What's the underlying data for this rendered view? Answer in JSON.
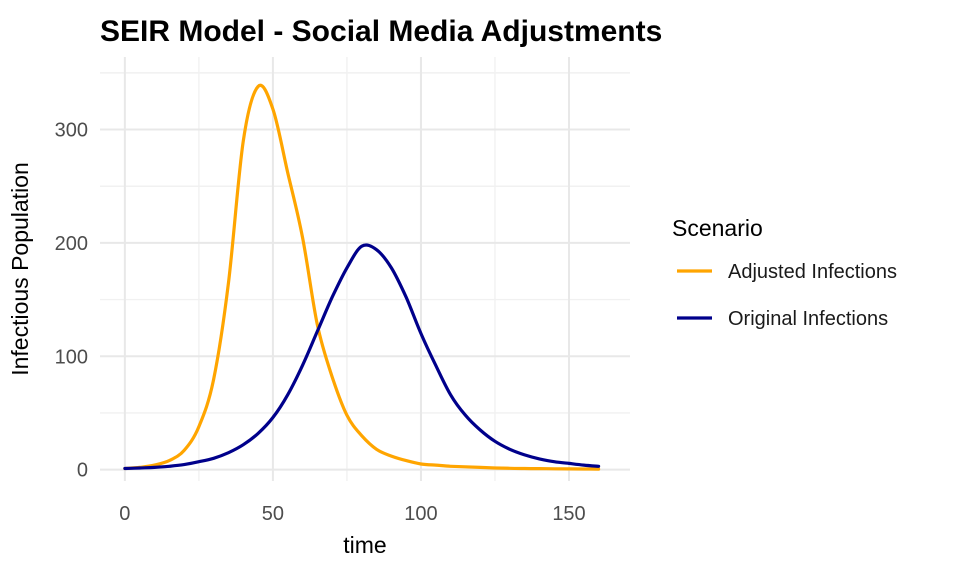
{
  "chart_data": {
    "type": "line",
    "title": "SEIR Model - Social Media Adjustments",
    "xlabel": "time",
    "ylabel": "Infectious Population",
    "xlim": [
      0,
      160
    ],
    "ylim": [
      0,
      340
    ],
    "x_ticks": [
      0,
      50,
      100,
      150
    ],
    "x_minor_ticks": [
      25,
      75,
      125
    ],
    "y_ticks": [
      0,
      100,
      200,
      300
    ],
    "y_minor_ticks": [
      50,
      150,
      250,
      350
    ],
    "grid": true,
    "legend_title": "Scenario",
    "legend_position": "right",
    "x": [
      0,
      5,
      10,
      15,
      20,
      25,
      30,
      35,
      40,
      45,
      50,
      55,
      60,
      65,
      70,
      75,
      80,
      85,
      90,
      95,
      100,
      105,
      110,
      115,
      120,
      125,
      130,
      135,
      140,
      145,
      150,
      155,
      160
    ],
    "series": [
      {
        "name": "Adjusted Infections",
        "color": "#FFA500",
        "values": [
          1,
          2,
          4,
          8,
          17,
          38,
          80,
          165,
          290,
          338,
          318,
          262,
          205,
          128,
          82,
          48,
          30,
          18,
          12,
          8,
          5,
          4,
          3,
          2.5,
          2,
          1.5,
          1.2,
          1,
          0.9,
          0.8,
          0.7,
          0.6,
          0.5
        ]
      },
      {
        "name": "Original Infections",
        "color": "#00008B",
        "values": [
          1,
          1.5,
          2,
          3,
          4.5,
          7,
          10,
          15,
          22,
          32,
          46,
          66,
          92,
          122,
          152,
          178,
          197,
          194,
          178,
          152,
          120,
          92,
          66,
          48,
          35,
          25,
          18,
          13,
          9.5,
          7,
          5.5,
          4,
          3
        ]
      }
    ]
  },
  "colors": {
    "background": "#FFFFFF",
    "grid_major": "#E8E8E8",
    "grid_minor": "#F1F1F1",
    "tick_text": "#4D4D4D",
    "title_text": "#000000"
  }
}
